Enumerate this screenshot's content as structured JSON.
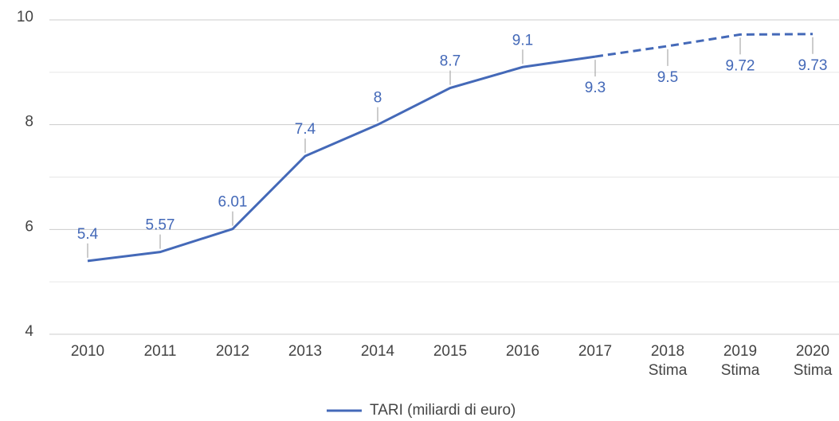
{
  "chart_data": {
    "type": "line",
    "categories": [
      "2010",
      "2011",
      "2012",
      "2013",
      "2014",
      "2015",
      "2016",
      "2017",
      "2018\nStima",
      "2019\nStima",
      "2020\nStima"
    ],
    "series": [
      {
        "name": "TARI (miliardi di euro)",
        "color": "#4469b8",
        "values": [
          5.4,
          5.57,
          6.01,
          7.4,
          8,
          8.7,
          9.1,
          9.3,
          9.5,
          9.72,
          9.73
        ]
      }
    ],
    "dashed_from": "2017",
    "ylim": [
      4,
      10
    ],
    "yticks": [
      4,
      6,
      8,
      10
    ],
    "minor_grid": [
      5,
      7,
      9
    ],
    "grid": true,
    "legend": "bottom"
  }
}
